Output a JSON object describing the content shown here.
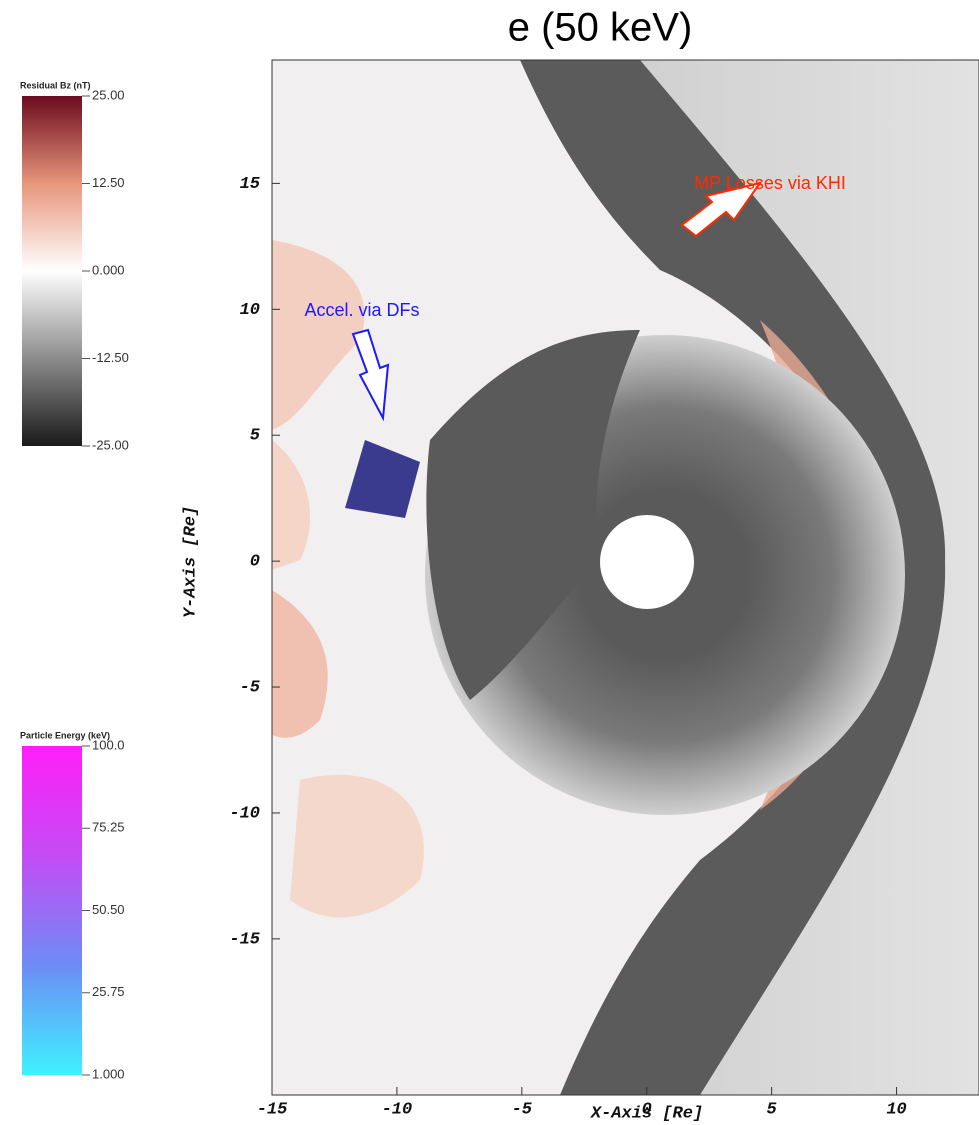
{
  "chart_data": {
    "type": "field",
    "title": "e (50 keV)",
    "x_label": "X-Axis [Re]",
    "y_label": "Y-Axis [Re]",
    "xlim": [
      -15,
      13.3
    ],
    "ylim": [
      -21.2,
      19.9
    ],
    "xticks": [
      -15,
      -10,
      -5,
      0,
      5,
      10
    ],
    "yticks": [
      -15,
      -10,
      -5,
      0,
      5,
      10,
      15
    ],
    "annotations": [
      {
        "text": "MP Losses via KHI",
        "color": "#ff2a00"
      },
      {
        "text": "Accel. via DFs",
        "color": "#1a1aff"
      }
    ],
    "colorbars": [
      {
        "title": "Residual Bz (nT)",
        "lim": [
          -25,
          25
        ],
        "colors": [
          "#1a1a1a",
          "#8c8c8c",
          "#ffffff",
          "#e8967c",
          "#6b0a1e"
        ],
        "ticks": [
          {
            "value": 25,
            "label": "25.00"
          },
          {
            "value": 12.5,
            "label": "12.50"
          },
          {
            "value": 0,
            "label": "0.000"
          },
          {
            "value": -12.5,
            "label": "-12.50"
          },
          {
            "value": -25,
            "label": "-25.00"
          }
        ]
      },
      {
        "title": "Particle Energy (keV)",
        "lim": [
          1,
          100
        ],
        "colors": [
          "#3ef2ff",
          "#6d8cf5",
          "#c44cf5",
          "#ff1ef8"
        ],
        "ticks": [
          {
            "value": 100,
            "label": "100.0"
          },
          {
            "value": 75.25,
            "label": "75.25"
          },
          {
            "value": 50.5,
            "label": "50.50"
          },
          {
            "value": 25.75,
            "label": "25.75"
          },
          {
            "value": 1,
            "label": "1.000"
          }
        ]
      }
    ]
  }
}
